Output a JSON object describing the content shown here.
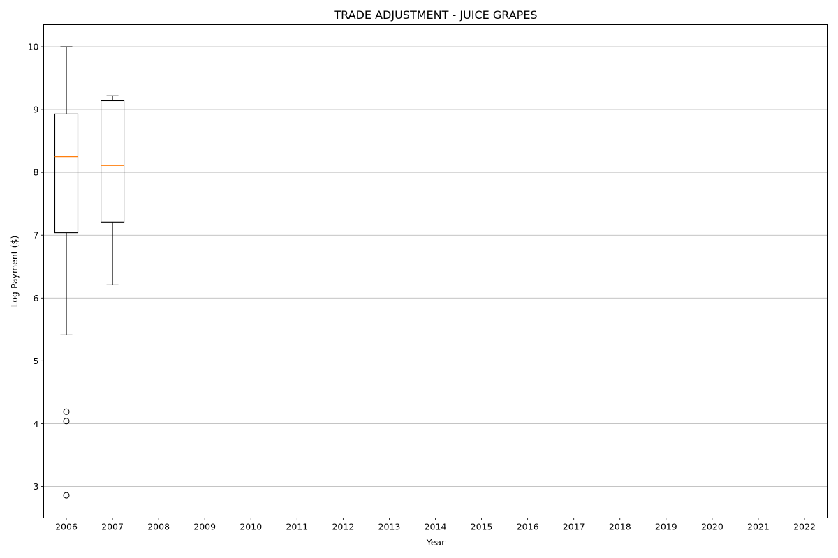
{
  "chart_data": {
    "type": "box",
    "title": "TRADE ADJUSTMENT - JUICE GRAPES",
    "xlabel": "Year",
    "ylabel": "Log Payment ($)",
    "categories": [
      "2006",
      "2007",
      "2008",
      "2009",
      "2010",
      "2011",
      "2012",
      "2013",
      "2014",
      "2015",
      "2016",
      "2017",
      "2018",
      "2019",
      "2020",
      "2021",
      "2022"
    ],
    "y_ticks": [
      "3",
      "4",
      "5",
      "6",
      "7",
      "8",
      "9",
      "10"
    ],
    "ylim": [
      2.5,
      10.35
    ],
    "grid": {
      "y": true,
      "x": false
    },
    "colors": {
      "box": "#000000",
      "median": "#ff7f0e",
      "grid": "#b0b0b0",
      "axis": "#000000"
    },
    "boxes": [
      {
        "category": "2006",
        "whisker_low": 5.41,
        "q1": 7.04,
        "median": 8.25,
        "q3": 8.93,
        "whisker_high": 10.0,
        "outliers": [
          4.19,
          4.04,
          2.86
        ]
      },
      {
        "category": "2007",
        "whisker_low": 6.21,
        "q1": 7.21,
        "median": 8.11,
        "q3": 9.14,
        "whisker_high": 9.22,
        "outliers": []
      }
    ]
  }
}
